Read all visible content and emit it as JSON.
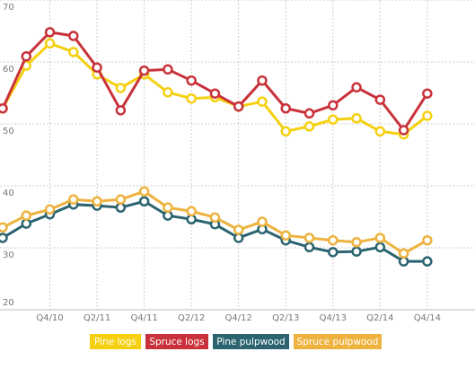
{
  "chart_data": {
    "type": "line",
    "categories": [
      null,
      null,
      "Q4/10",
      null,
      "Q2/11",
      null,
      "Q4/11",
      null,
      "Q2/12",
      null,
      "Q4/12",
      null,
      "Q2/13",
      null,
      "Q4/13",
      null,
      "Q2/14",
      null,
      "Q4/14"
    ],
    "series": [
      {
        "name": "Pine logs",
        "color": "#f5d010",
        "values": [
          52.5,
          59.4,
          63.0,
          61.6,
          58.0,
          55.8,
          58.0,
          55.1,
          54.1,
          54.3,
          52.8,
          53.6,
          48.8,
          49.6,
          50.7,
          50.9,
          48.8,
          48.3,
          51.3
        ]
      },
      {
        "name": "Spruce logs",
        "color": "#c9323a",
        "values": [
          52.5,
          60.9,
          64.8,
          64.2,
          59.1,
          52.2,
          58.6,
          58.8,
          57.0,
          54.9,
          52.8,
          57.0,
          52.5,
          51.7,
          53.0,
          55.9,
          53.9,
          49.0,
          54.9
        ]
      },
      {
        "name": "Pine pulpwood",
        "color": "#2b6470",
        "values": [
          31.6,
          33.9,
          35.4,
          37.0,
          36.8,
          36.5,
          37.5,
          35.2,
          34.6,
          33.8,
          31.6,
          33.0,
          31.2,
          30.1,
          29.3,
          29.4,
          30.1,
          27.8,
          27.8
        ]
      },
      {
        "name": "Spruce pulpwood",
        "color": "#eeb23e",
        "values": [
          33.3,
          35.2,
          36.2,
          37.8,
          37.5,
          37.8,
          39.1,
          36.5,
          35.9,
          34.9,
          32.9,
          34.2,
          32.0,
          31.6,
          31.2,
          30.9,
          31.6,
          29.1,
          31.2
        ]
      }
    ],
    "ylim": [
      20,
      70
    ],
    "yticks": [
      20,
      30,
      40,
      50,
      60,
      70
    ],
    "grid": true,
    "legend": "bottom"
  }
}
